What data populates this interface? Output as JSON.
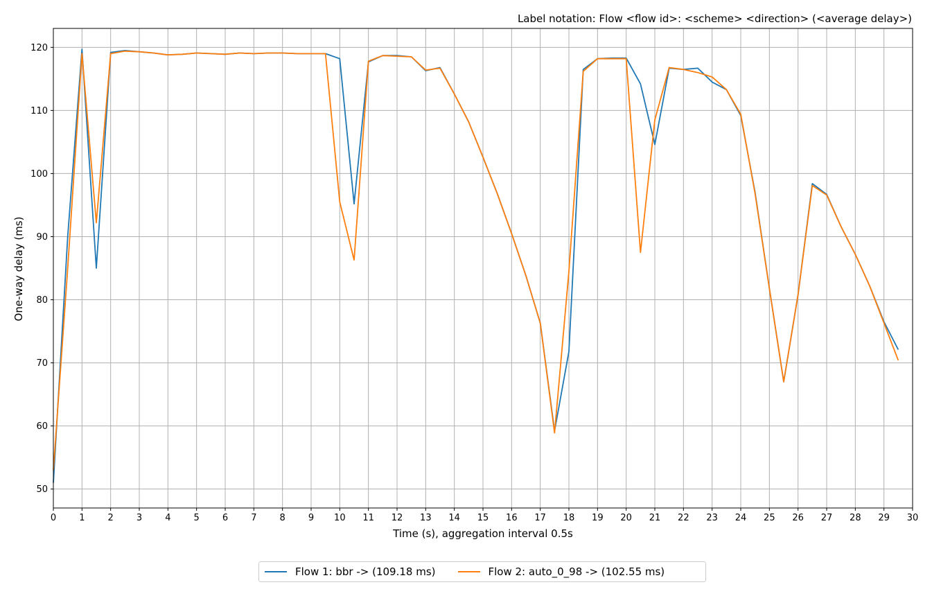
{
  "chart_data": {
    "type": "line",
    "note": "Label notation: Flow <flow id>: <scheme> <direction> (<average delay>)",
    "xlabel": "Time (s), aggregation interval 0.5s",
    "ylabel": "One-way delay (ms)",
    "xlim": [
      0,
      30
    ],
    "ylim": [
      47,
      123
    ],
    "xticks": [
      0,
      1,
      2,
      3,
      4,
      5,
      6,
      7,
      8,
      9,
      10,
      11,
      12,
      13,
      14,
      15,
      16,
      17,
      18,
      19,
      20,
      21,
      22,
      23,
      24,
      25,
      26,
      27,
      28,
      29,
      30
    ],
    "yticks": [
      50,
      60,
      70,
      80,
      90,
      100,
      110,
      120
    ],
    "grid": true,
    "legend_position": "bottom-center",
    "series": [
      {
        "name": "Flow 1: bbr -> (109.18 ms)",
        "color": "#1f77b4",
        "x": [
          0,
          0.5,
          1,
          1.5,
          2,
          2.5,
          3,
          3.5,
          4,
          4.5,
          5,
          5.5,
          6,
          6.5,
          7,
          7.5,
          8,
          8.5,
          9,
          9.5,
          10,
          10.5,
          11,
          11.5,
          12,
          12.5,
          13,
          13.5,
          14,
          14.5,
          15,
          15.5,
          16,
          16.5,
          17,
          17.5,
          18,
          18.5,
          19,
          19.5,
          20,
          20.5,
          21,
          21.5,
          22,
          22.5,
          23,
          23.5,
          24,
          24.5,
          25,
          25.5,
          26,
          26.5,
          27,
          27.5,
          28,
          28.5,
          29,
          29.5
        ],
        "y": [
          51,
          90,
          119.7,
          85,
          119.2,
          119.5,
          119.3,
          119.1,
          118.8,
          118.9,
          119.1,
          119,
          118.9,
          119.1,
          119,
          119.1,
          119.1,
          119,
          119,
          119,
          118.2,
          95.2,
          117.7,
          118.7,
          118.7,
          118.5,
          116.3,
          116.8,
          112.6,
          108.2,
          102.6,
          96.8,
          90.5,
          83.8,
          76.3,
          59.2,
          71.8,
          116.5,
          118.2,
          118.3,
          118.3,
          114.2,
          104.6,
          116.7,
          116.5,
          116.7,
          114.5,
          113.3,
          109.2,
          97,
          81.8,
          67,
          80.8,
          98.4,
          96.7,
          91.6,
          87.2,
          82.2,
          76.5,
          72.1
        ]
      },
      {
        "name": "Flow 2: auto_0_98 -> (102.55 ms)",
        "color": "#ff7f0e",
        "x": [
          0,
          0.5,
          1,
          1.5,
          2,
          2.5,
          3,
          3.5,
          4,
          4.5,
          5,
          5.5,
          6,
          6.5,
          7,
          7.5,
          8,
          8.5,
          9,
          9.5,
          10,
          10.5,
          11,
          11.5,
          12,
          12.5,
          13,
          13.5,
          14,
          14.5,
          15,
          15.5,
          16,
          16.5,
          17,
          17.5,
          18,
          18.5,
          19,
          19.5,
          20,
          20.5,
          21,
          21.5,
          22,
          22.5,
          23,
          23.5,
          24,
          24.5,
          25,
          25.5,
          26,
          26.5,
          27,
          27.5,
          28,
          28.5,
          29,
          29.5
        ],
        "y": [
          53,
          85,
          119,
          92.2,
          119,
          119.4,
          119.3,
          119.1,
          118.8,
          118.9,
          119.1,
          119,
          118.9,
          119.1,
          119,
          119.1,
          119.1,
          119,
          119,
          119,
          95.5,
          86.3,
          117.8,
          118.7,
          118.6,
          118.5,
          116.4,
          116.7,
          112.6,
          108.2,
          102.6,
          96.8,
          90.5,
          83.8,
          76.3,
          58.9,
          84.5,
          116.2,
          118.2,
          118.2,
          118.2,
          87.5,
          108.5,
          116.8,
          116.5,
          116,
          115.3,
          113.3,
          109.4,
          96.8,
          81.8,
          67,
          80.8,
          98.1,
          96.6,
          91.6,
          87.2,
          82.2,
          76.3,
          70.4
        ]
      }
    ]
  }
}
